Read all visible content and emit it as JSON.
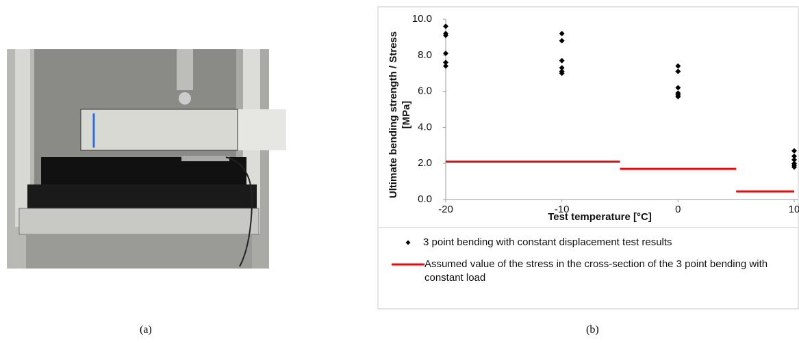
{
  "captions": [
    "(a)",
    "(b)"
  ],
  "chart_data": {
    "type": "scatter",
    "xlabel": "Test temperature [°C]",
    "ylabel": [
      "Ultimate bending strength / Stress",
      "[MPa]"
    ],
    "xlim": [
      -20,
      10
    ],
    "xticks": [
      -20,
      -10,
      0,
      10
    ],
    "ylim": [
      0,
      10
    ],
    "yticks": [
      {
        "value": 0,
        "label": "0.0"
      },
      {
        "value": 2,
        "label": "2.0"
      },
      {
        "value": 4,
        "label": "4.0"
      },
      {
        "value": 6,
        "label": "6.0"
      },
      {
        "value": 8,
        "label": "8.0"
      },
      {
        "value": 10,
        "label": "10.0"
      }
    ],
    "series": [
      {
        "name": "3 point bending with constant displacement test results",
        "color": "#000000",
        "kind": "scatter",
        "x": [
          -20,
          -20,
          -20,
          -20,
          -20,
          -20,
          -10,
          -10,
          -10,
          -10,
          -10,
          -10,
          0,
          0,
          0,
          0,
          0,
          0,
          10,
          10,
          10,
          10,
          10,
          10
        ],
        "values": [
          9.6,
          9.2,
          9.1,
          8.1,
          7.6,
          7.4,
          9.2,
          8.8,
          7.7,
          7.3,
          7.1,
          7.0,
          7.4,
          7.1,
          6.2,
          5.9,
          5.8,
          5.7,
          2.7,
          2.4,
          2.2,
          2.0,
          1.9,
          1.8
        ]
      },
      {
        "name": "Assumed value of the stress in the cross-section of the 3 point bending with constant load",
        "color": "#ff0000",
        "kind": "line",
        "x": [
          -20,
          -5,
          null,
          -5,
          5,
          null,
          5,
          10
        ],
        "values": [
          2.1,
          2.1,
          null,
          1.7,
          1.7,
          null,
          0.45,
          0.45
        ]
      }
    ]
  }
}
